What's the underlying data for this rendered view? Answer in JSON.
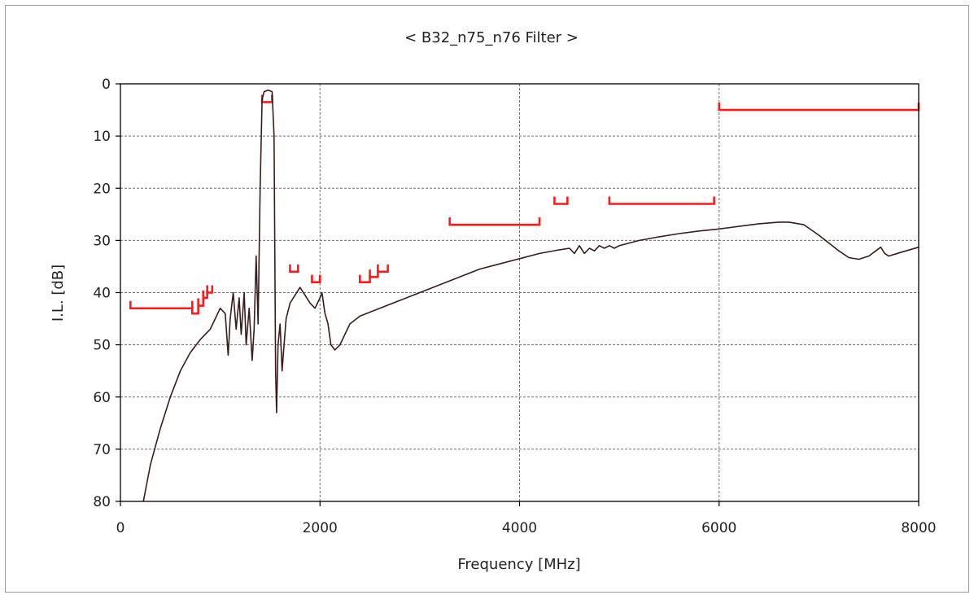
{
  "chart_data": {
    "type": "line",
    "title": "< B32_n75_n76 Filter >",
    "xlabel": "Frequency [MHz]",
    "ylabel": "I.L. [dB]",
    "xlim": [
      0,
      8000
    ],
    "ylim": [
      0,
      80
    ],
    "y_inverted": true,
    "grid": true,
    "x_ticks": [
      "0",
      "2000",
      "4000",
      "6000",
      "8000"
    ],
    "y_ticks": [
      "0",
      "10",
      "20",
      "30",
      "40",
      "50",
      "60",
      "70",
      "80"
    ],
    "colors": {
      "response": "#3a1c1c",
      "spec": "#ff1a1a",
      "grid": "#707070",
      "axis": "#000000"
    },
    "series": [
      {
        "points": [
          [
            230,
            80
          ],
          [
            300,
            73
          ],
          [
            400,
            66
          ],
          [
            500,
            60
          ],
          [
            600,
            55
          ],
          [
            700,
            51.5
          ],
          [
            800,
            49
          ],
          [
            900,
            47
          ],
          [
            950,
            45
          ],
          [
            1000,
            43
          ],
          [
            1050,
            44
          ],
          [
            1080,
            52
          ],
          [
            1100,
            45
          ],
          [
            1130,
            40
          ],
          [
            1160,
            47
          ],
          [
            1190,
            41
          ],
          [
            1210,
            48
          ],
          [
            1240,
            40
          ],
          [
            1260,
            50
          ],
          [
            1290,
            43
          ],
          [
            1320,
            53
          ],
          [
            1340,
            47
          ],
          [
            1360,
            33
          ],
          [
            1380,
            46
          ],
          [
            1400,
            20
          ],
          [
            1420,
            3
          ],
          [
            1440,
            1.5
          ],
          [
            1480,
            1.2
          ],
          [
            1520,
            1.5
          ],
          [
            1540,
            10
          ],
          [
            1555,
            55
          ],
          [
            1565,
            63
          ],
          [
            1580,
            50
          ],
          [
            1600,
            46
          ],
          [
            1620,
            55
          ],
          [
            1640,
            50
          ],
          [
            1660,
            45
          ],
          [
            1700,
            42
          ],
          [
            1750,
            40.5
          ],
          [
            1800,
            39
          ],
          [
            1850,
            40.5
          ],
          [
            1900,
            42
          ],
          [
            1950,
            43
          ],
          [
            2000,
            41
          ],
          [
            2020,
            40
          ],
          [
            2050,
            44
          ],
          [
            2080,
            46
          ],
          [
            2110,
            50
          ],
          [
            2150,
            51
          ],
          [
            2200,
            50
          ],
          [
            2250,
            48
          ],
          [
            2300,
            46
          ],
          [
            2400,
            44.5
          ],
          [
            2600,
            43
          ],
          [
            2800,
            41.5
          ],
          [
            3000,
            40
          ],
          [
            3200,
            38.5
          ],
          [
            3400,
            37
          ],
          [
            3600,
            35.5
          ],
          [
            3800,
            34.5
          ],
          [
            4000,
            33.5
          ],
          [
            4200,
            32.5
          ],
          [
            4400,
            31.8
          ],
          [
            4500,
            31.5
          ],
          [
            4550,
            32.5
          ],
          [
            4600,
            31
          ],
          [
            4650,
            32.5
          ],
          [
            4700,
            31.5
          ],
          [
            4750,
            32
          ],
          [
            4800,
            31
          ],
          [
            4850,
            31.5
          ],
          [
            4900,
            31
          ],
          [
            4950,
            31.5
          ],
          [
            5000,
            31
          ],
          [
            5200,
            30
          ],
          [
            5400,
            29.3
          ],
          [
            5600,
            28.7
          ],
          [
            5800,
            28.2
          ],
          [
            6000,
            27.8
          ],
          [
            6200,
            27.3
          ],
          [
            6400,
            26.8
          ],
          [
            6600,
            26.5
          ],
          [
            6700,
            26.5
          ],
          [
            6850,
            27
          ],
          [
            7000,
            29
          ],
          [
            7200,
            32
          ],
          [
            7300,
            33.3
          ],
          [
            7400,
            33.6
          ],
          [
            7500,
            33
          ],
          [
            7570,
            32
          ],
          [
            7620,
            31.3
          ],
          [
            7660,
            32.5
          ],
          [
            7700,
            33
          ],
          [
            7800,
            32.4
          ],
          [
            8000,
            31.3
          ]
        ]
      }
    ],
    "spec_masks": [
      {
        "x": [
          100,
          720
        ],
        "y": 43,
        "side": "below"
      },
      {
        "x": [
          720,
          780
        ],
        "y": 44,
        "side": "below"
      },
      {
        "x": [
          780,
          830
        ],
        "y": 42.5,
        "side": "below"
      },
      {
        "x": [
          830,
          870
        ],
        "y": 41,
        "side": "below"
      },
      {
        "x": [
          870,
          920
        ],
        "y": 40,
        "side": "below"
      },
      {
        "x": [
          1420,
          1520
        ],
        "y": 3.5,
        "side": "below"
      },
      {
        "x": [
          1700,
          1780
        ],
        "y": 36,
        "side": "below"
      },
      {
        "x": [
          1920,
          2000
        ],
        "y": 38,
        "side": "below"
      },
      {
        "x": [
          2400,
          2500
        ],
        "y": 38,
        "side": "below"
      },
      {
        "x": [
          2500,
          2580
        ],
        "y": 37,
        "side": "below"
      },
      {
        "x": [
          2580,
          2680
        ],
        "y": 36,
        "side": "below"
      },
      {
        "x": [
          3300,
          4200
        ],
        "y": 27,
        "side": "below"
      },
      {
        "x": [
          4350,
          4480
        ],
        "y": 23,
        "side": "below"
      },
      {
        "x": [
          4900,
          5950
        ],
        "y": 23,
        "side": "below"
      },
      {
        "x": [
          6000,
          8000
        ],
        "y": 5,
        "side": "below"
      }
    ]
  }
}
